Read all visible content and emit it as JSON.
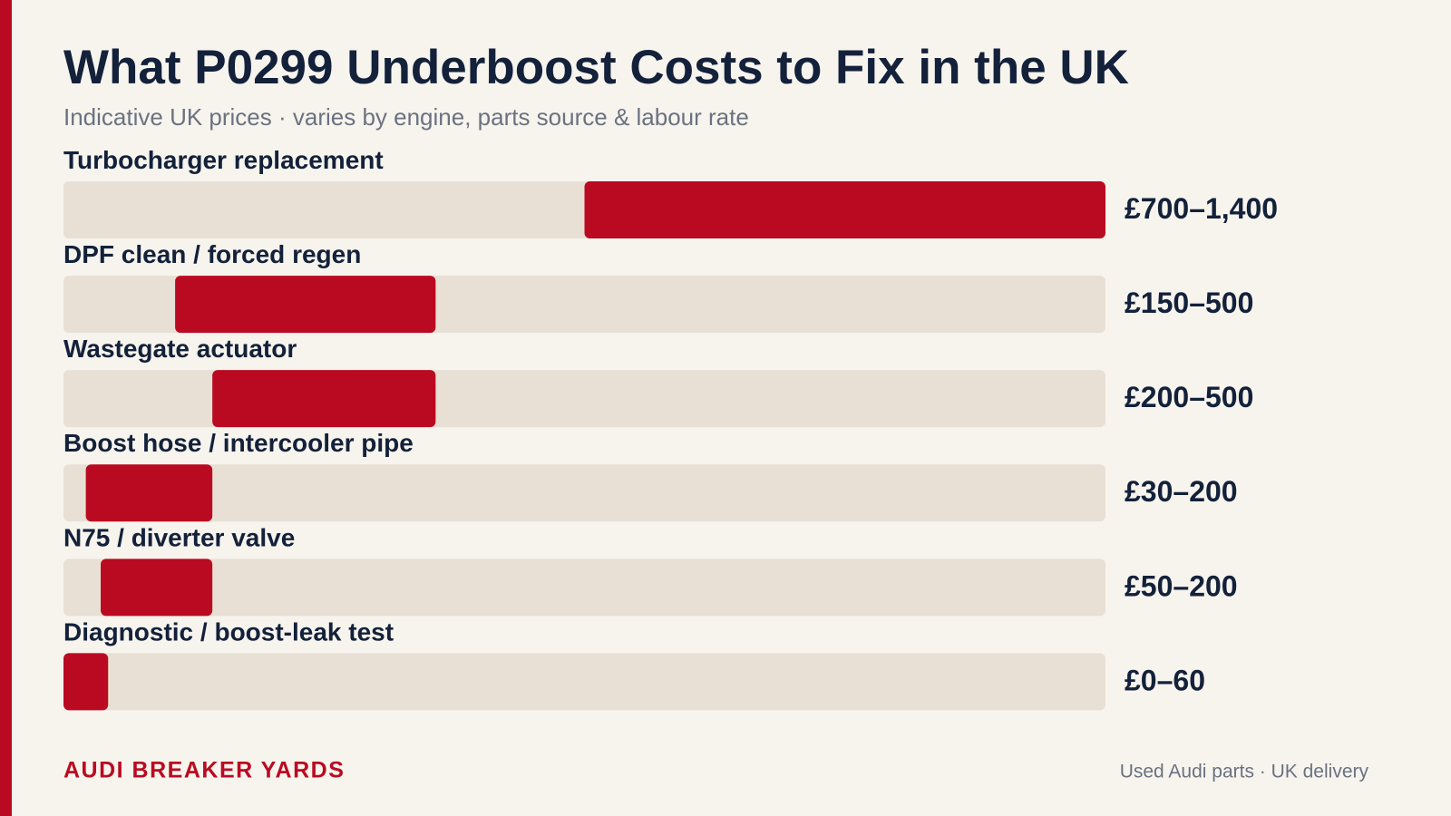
{
  "chart_data": {
    "type": "range_bar",
    "title": "What P0299 Underboost Costs to Fix in the UK",
    "subtitle": "Indicative UK prices · varies by engine, parts source & labour rate",
    "categories": [
      "Turbocharger replacement",
      "DPF clean / forced regen",
      "Wastegate actuator",
      "Boost hose / intercooler pipe",
      "N75 / diverter valve",
      "Diagnostic / boost-leak test"
    ],
    "low": [
      700,
      150,
      200,
      30,
      50,
      0
    ],
    "high": [
      1400,
      500,
      500,
      200,
      200,
      60
    ],
    "value_labels": [
      "£700–1,400",
      "£150–500",
      "£200–500",
      "£30–200",
      "£50–200",
      "£0–60"
    ],
    "color": "#ba0a21",
    "xlim": [
      0,
      1400
    ]
  },
  "footer": {
    "brand": "AUDI BREAKER YARDS",
    "tagline": "Used Audi parts · UK delivery"
  }
}
